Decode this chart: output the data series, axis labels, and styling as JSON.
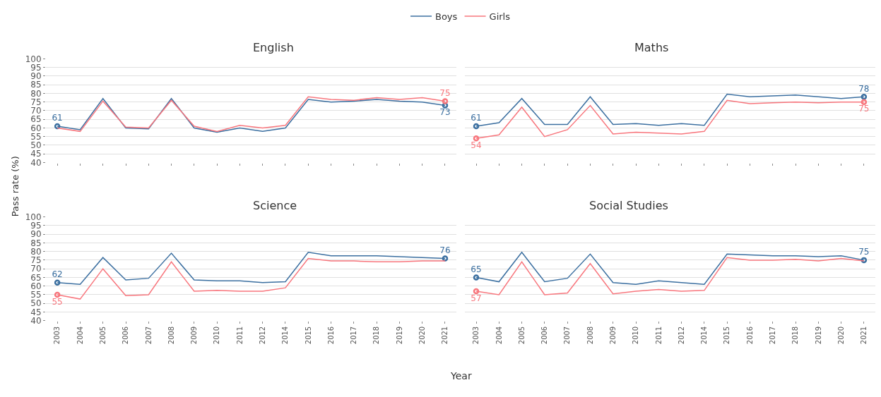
{
  "chart_data": [
    {
      "type": "line",
      "title": "English",
      "ylabel": "Pass rate (%)",
      "legend": "top",
      "tick_labels": "y",
      "grid": "y",
      "line_style": "solid",
      "categories": [
        "2003",
        "2004",
        "2005",
        "2006",
        "2007",
        "2008",
        "2009",
        "2010",
        "2011",
        "2012",
        "2014",
        "2015",
        "2016",
        "2017",
        "2018",
        "2019",
        "2020",
        "2021"
      ],
      "ylim": [
        40,
        100
      ],
      "yticks": [
        40,
        45,
        50,
        55,
        60,
        65,
        70,
        75,
        80,
        85,
        90,
        95,
        100
      ],
      "series": [
        {
          "name": "Boys",
          "color": "#3b6fa0",
          "values": [
            61,
            59,
            77,
            60,
            59.5,
            77,
            60,
            57.5,
            60,
            58,
            60,
            76.5,
            75,
            75.5,
            76.5,
            75.5,
            75,
            73
          ],
          "value_labels": [
            "61",
            null,
            null,
            null,
            null,
            null,
            null,
            null,
            null,
            null,
            null,
            null,
            null,
            null,
            null,
            null,
            null,
            "73"
          ]
        },
        {
          "name": "Girls",
          "color": "#f8767d",
          "values": [
            60,
            58,
            75.5,
            60.5,
            60,
            76,
            61,
            58,
            61.5,
            60,
            61.5,
            78,
            76.5,
            76,
            77.5,
            76.5,
            77.5,
            75.5
          ],
          "value_labels": [
            null,
            null,
            null,
            null,
            null,
            null,
            null,
            null,
            null,
            null,
            null,
            null,
            null,
            null,
            null,
            null,
            null,
            "75"
          ]
        }
      ]
    },
    {
      "type": "line",
      "title": "Maths",
      "tick_labels": false,
      "grid": "y",
      "line_style": "solid",
      "categories": [
        "2003",
        "2004",
        "2005",
        "2006",
        "2007",
        "2008",
        "2009",
        "2010",
        "2011",
        "2012",
        "2014",
        "2015",
        "2016",
        "2017",
        "2018",
        "2019",
        "2020",
        "2021"
      ],
      "ylim": [
        40,
        100
      ],
      "yticks": [
        40,
        45,
        50,
        55,
        60,
        65,
        70,
        75,
        80,
        85,
        90,
        95,
        100
      ],
      "series": [
        {
          "color": "#3b6fa0",
          "values": [
            61,
            63,
            77,
            62,
            62,
            78,
            62,
            62.5,
            61.5,
            62.5,
            61.5,
            79.5,
            78,
            78.5,
            79,
            78,
            77,
            78
          ],
          "value_labels": [
            "61",
            null,
            null,
            null,
            null,
            null,
            null,
            null,
            null,
            null,
            null,
            null,
            null,
            null,
            null,
            null,
            null,
            "78"
          ]
        },
        {
          "color": "#f8767d",
          "values": [
            54,
            56,
            72,
            55,
            59,
            73,
            56.5,
            57.5,
            57,
            56.5,
            58,
            76,
            74,
            74.5,
            75,
            74.5,
            75,
            75
          ],
          "value_labels": [
            "54",
            null,
            null,
            null,
            null,
            null,
            null,
            null,
            null,
            null,
            null,
            null,
            null,
            null,
            null,
            null,
            null,
            "75"
          ]
        }
      ]
    },
    {
      "type": "line",
      "title": "Science",
      "xlabel": "Year",
      "grid": "y",
      "line_style": "solid",
      "categories": [
        "2003",
        "2004",
        "2005",
        "2006",
        "2007",
        "2008",
        "2009",
        "2010",
        "2011",
        "2012",
        "2014",
        "2015",
        "2016",
        "2017",
        "2018",
        "2019",
        "2020",
        "2021"
      ],
      "ylim": [
        40,
        100
      ],
      "yticks": [
        40,
        45,
        50,
        55,
        60,
        65,
        70,
        75,
        80,
        85,
        90,
        95,
        100
      ],
      "series": [
        {
          "color": "#3b6fa0",
          "values": [
            62,
            61,
            76.5,
            63.5,
            64.5,
            79,
            63.5,
            63,
            63,
            62,
            62.5,
            79.5,
            77.5,
            77.5,
            77.5,
            77,
            76.5,
            76
          ],
          "value_labels": [
            "62",
            null,
            null,
            null,
            null,
            null,
            null,
            null,
            null,
            null,
            null,
            null,
            null,
            null,
            null,
            null,
            null,
            "76"
          ]
        },
        {
          "color": "#f8767d",
          "values": [
            55,
            52.5,
            70,
            54.5,
            55,
            74,
            57,
            57.5,
            57,
            57,
            59,
            76,
            74.5,
            74.5,
            74,
            74,
            74.5,
            74.5
          ],
          "value_labels": [
            "55",
            null,
            null,
            null,
            null,
            null,
            null,
            null,
            null,
            null,
            null,
            null,
            null,
            null,
            null,
            null,
            null,
            null
          ]
        }
      ]
    },
    {
      "type": "line",
      "title": "Social Studies",
      "tick_labels": "x",
      "grid": "y",
      "line_style": "solid",
      "categories": [
        "2003",
        "2004",
        "2005",
        "2006",
        "2007",
        "2008",
        "2009",
        "2010",
        "2011",
        "2012",
        "2014",
        "2015",
        "2016",
        "2017",
        "2018",
        "2019",
        "2020",
        "2021"
      ],
      "ylim": [
        40,
        100
      ],
      "yticks": [
        40,
        45,
        50,
        55,
        60,
        65,
        70,
        75,
        80,
        85,
        90,
        95,
        100
      ],
      "series": [
        {
          "color": "#3b6fa0",
          "values": [
            65,
            62.5,
            79.5,
            62.5,
            64.5,
            78.5,
            62,
            61,
            63,
            62,
            61,
            78.5,
            78,
            77.5,
            77.5,
            77,
            77.5,
            75
          ],
          "value_labels": [
            "65",
            null,
            null,
            null,
            null,
            null,
            null,
            null,
            null,
            null,
            null,
            null,
            null,
            null,
            null,
            null,
            null,
            "75"
          ]
        },
        {
          "color": "#f8767d",
          "values": [
            57,
            55,
            74,
            55,
            56,
            73,
            55.5,
            57,
            58,
            57,
            57.5,
            76.5,
            75,
            75,
            75.5,
            74.5,
            76,
            74.5
          ],
          "value_labels": [
            "57",
            null,
            null,
            null,
            null,
            null,
            null,
            null,
            null,
            null,
            null,
            null,
            null,
            null,
            null,
            null,
            null,
            null
          ]
        }
      ]
    }
  ]
}
